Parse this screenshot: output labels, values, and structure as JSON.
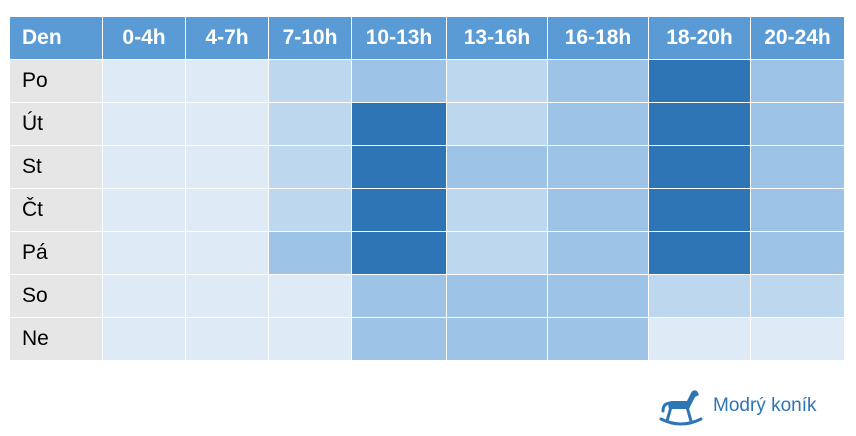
{
  "chart_data": {
    "type": "heatmap",
    "header_label": "Den",
    "columns": [
      "0-4h",
      "4-7h",
      "7-10h",
      "10-13h",
      "13-16h",
      "16-18h",
      "18-20h",
      "20-24h"
    ],
    "rows": [
      "Po",
      "Út",
      "St",
      "Čt",
      "Pá",
      "So",
      "Ne"
    ],
    "levels": [
      [
        1,
        1,
        2,
        3,
        2,
        3,
        5,
        3
      ],
      [
        1,
        1,
        2,
        5,
        2,
        3,
        5,
        3
      ],
      [
        1,
        1,
        2,
        5,
        3,
        3,
        5,
        3
      ],
      [
        1,
        1,
        2,
        5,
        2,
        3,
        5,
        3
      ],
      [
        1,
        1,
        3,
        5,
        2,
        3,
        5,
        3
      ],
      [
        1,
        1,
        1,
        3,
        3,
        3,
        2,
        2
      ],
      [
        1,
        1,
        1,
        3,
        3,
        3,
        1,
        1
      ]
    ],
    "level_colors": {
      "1": "#deebf7",
      "2": "#bdd7ee",
      "3": "#9dc3e6",
      "5": "#2e75b6"
    },
    "header_color": "#5b9bd5",
    "rowlabel_color": "#e7e6e6"
  },
  "brand": {
    "name": "Modrý koník",
    "icon": "rocking-horse-icon",
    "color": "#2e75b6"
  }
}
